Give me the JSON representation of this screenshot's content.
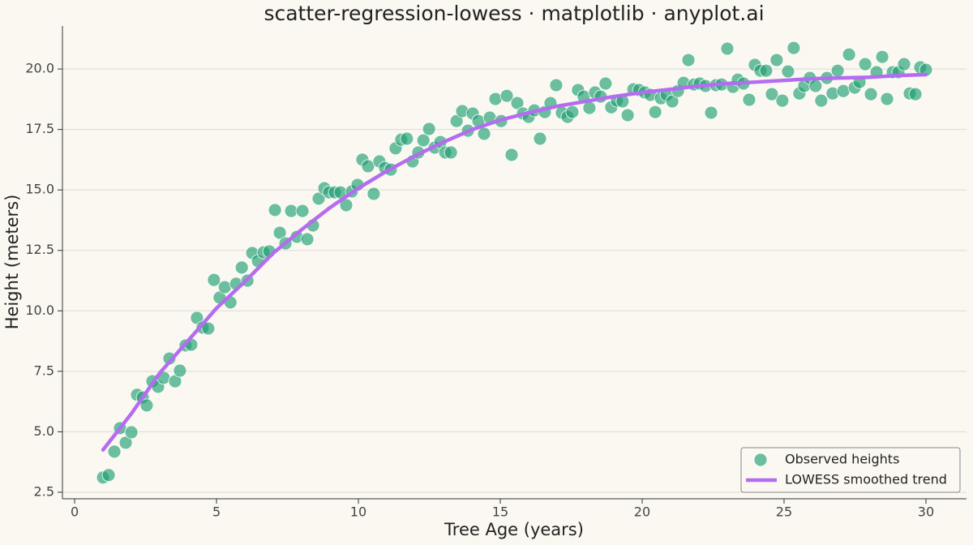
{
  "chart_data": {
    "type": "scatter",
    "title": "scatter-regression-lowess · matplotlib · anyplot.ai",
    "x_label": "Tree Age (years)",
    "y_label": "Height (meters)",
    "xlim": [
      -0.43,
      31.43
    ],
    "ylim": [
      2.23,
      21.78
    ],
    "xticks": [
      0,
      5,
      10,
      15,
      20,
      25,
      30
    ],
    "yticks": [
      2.5,
      {
        "value": 5,
        "label": "5.0"
      },
      7.5,
      {
        "value": 10,
        "label": "10.0"
      },
      12.5,
      {
        "value": 15,
        "label": "15.0"
      },
      17.5,
      {
        "value": 20,
        "label": "20.0"
      }
    ],
    "grid": "y",
    "legend": "lower right",
    "series": [
      {
        "name": "Observed heights",
        "type": "scatter",
        "color": "#1f9e72",
        "x": [
          1.0,
          1.2,
          1.4,
          1.6,
          1.8,
          2.0,
          2.2,
          2.4,
          2.54,
          2.74,
          2.94,
          3.14,
          3.34,
          3.54,
          3.71,
          3.91,
          4.11,
          4.31,
          4.51,
          4.71,
          4.91,
          5.11,
          5.29,
          5.49,
          5.69,
          5.89,
          6.09,
          6.26,
          6.46,
          6.66,
          6.86,
          7.06,
          7.23,
          7.43,
          7.63,
          7.83,
          8.03,
          8.2,
          8.4,
          8.6,
          8.8,
          8.97,
          9.17,
          9.37,
          9.57,
          9.77,
          9.97,
          10.14,
          10.34,
          10.54,
          10.74,
          10.94,
          11.14,
          11.31,
          11.51,
          11.71,
          11.91,
          12.11,
          12.29,
          12.49,
          12.69,
          12.89,
          13.06,
          13.26,
          13.46,
          13.66,
          13.86,
          14.03,
          14.23,
          14.43,
          14.63,
          14.83,
          15.03,
          15.23,
          15.4,
          15.6,
          15.8,
          16.0,
          16.2,
          16.4,
          16.57,
          16.77,
          16.97,
          17.17,
          17.37,
          17.54,
          17.74,
          17.94,
          18.14,
          18.34,
          18.54,
          18.71,
          18.91,
          19.11,
          19.31,
          19.49,
          19.69,
          19.89,
          20.09,
          20.29,
          20.46,
          20.66,
          20.86,
          21.06,
          21.26,
          21.46,
          21.63,
          21.83,
          22.03,
          22.23,
          22.43,
          22.6,
          22.8,
          23.0,
          23.2,
          23.37,
          23.57,
          23.77,
          23.97,
          24.17,
          24.37,
          24.57,
          24.74,
          24.94,
          25.14,
          25.34,
          25.54,
          25.71,
          25.91,
          26.11,
          26.31,
          26.51,
          26.71,
          26.89,
          27.09,
          27.29,
          27.49,
          27.66,
          27.86,
          28.06,
          28.26,
          28.46,
          28.63,
          28.83,
          29.03,
          29.23,
          29.43,
          29.63,
          29.8,
          30.0
        ],
        "values": [
          3.11,
          3.21,
          4.18,
          5.15,
          4.55,
          4.98,
          6.53,
          6.42,
          6.09,
          7.09,
          6.86,
          7.23,
          8.03,
          7.09,
          7.53,
          8.57,
          8.6,
          9.71,
          9.31,
          9.27,
          11.28,
          10.55,
          10.98,
          10.35,
          11.12,
          11.79,
          11.25,
          12.39,
          12.06,
          12.42,
          12.46,
          14.17,
          13.23,
          12.79,
          14.13,
          13.06,
          14.13,
          12.96,
          13.53,
          14.64,
          15.07,
          14.9,
          14.9,
          14.9,
          14.37,
          14.94,
          15.21,
          16.25,
          15.98,
          14.84,
          16.18,
          15.91,
          15.84,
          16.72,
          17.08,
          17.12,
          16.18,
          16.55,
          17.05,
          17.52,
          16.75,
          16.98,
          16.55,
          16.55,
          17.85,
          18.26,
          17.45,
          18.16,
          17.85,
          17.32,
          17.99,
          18.76,
          17.85,
          18.89,
          16.45,
          18.59,
          18.16,
          18.02,
          18.29,
          17.12,
          18.22,
          18.59,
          19.33,
          18.19,
          18.02,
          18.22,
          19.13,
          18.86,
          18.39,
          19.03,
          18.86,
          19.4,
          18.42,
          18.69,
          18.66,
          18.09,
          19.16,
          19.13,
          19.03,
          18.93,
          18.22,
          18.79,
          18.93,
          18.66,
          19.09,
          19.43,
          20.37,
          19.36,
          19.4,
          19.3,
          18.19,
          19.33,
          19.36,
          20.84,
          19.26,
          19.56,
          19.4,
          18.73,
          20.17,
          19.93,
          19.93,
          18.96,
          20.37,
          18.69,
          19.9,
          20.87,
          18.99,
          19.3,
          19.63,
          19.3,
          18.69,
          19.63,
          18.99,
          19.93,
          19.09,
          20.6,
          19.23,
          19.46,
          20.2,
          18.96,
          19.87,
          20.5,
          18.76,
          19.87,
          19.87,
          20.2,
          18.99,
          18.96,
          20.07,
          19.97
        ]
      },
      {
        "name": "LOWESS smoothed trend",
        "type": "line",
        "color": "#b46cf0",
        "x": [
          1,
          2,
          3,
          4,
          5,
          6,
          7,
          8,
          9,
          10,
          11,
          12,
          13,
          14,
          15,
          16,
          17,
          18,
          19,
          20,
          21,
          22,
          23,
          24,
          25,
          26,
          27,
          28,
          29,
          30
        ],
        "values": [
          4.25,
          5.75,
          7.43,
          8.77,
          10.11,
          11.21,
          12.39,
          13.36,
          14.27,
          15.07,
          15.78,
          16.41,
          16.98,
          17.49,
          17.89,
          18.19,
          18.46,
          18.66,
          18.86,
          19.03,
          19.16,
          19.3,
          19.4,
          19.46,
          19.53,
          19.6,
          19.63,
          19.66,
          19.73,
          19.77
        ]
      }
    ]
  }
}
